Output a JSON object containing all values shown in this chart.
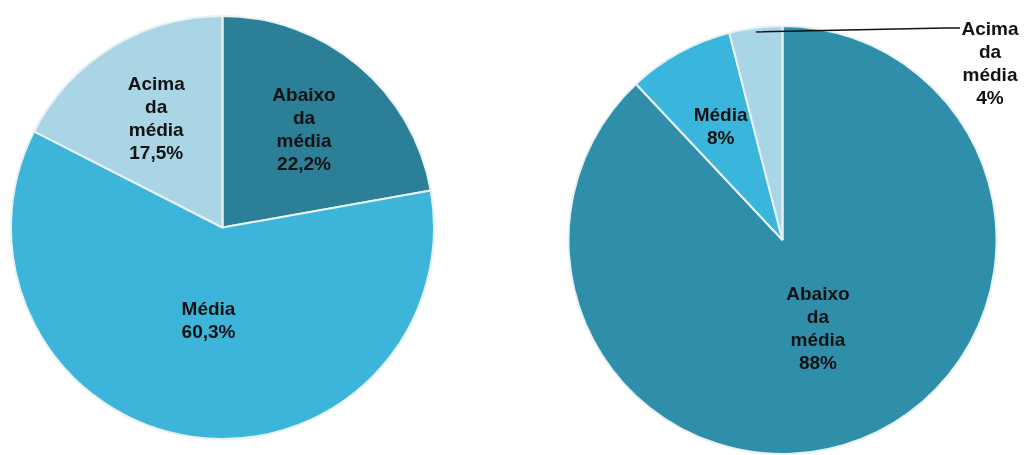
{
  "chart_data": [
    {
      "type": "pie",
      "categories": [
        "Abaixo da média",
        "Média",
        "Acima da média"
      ],
      "values": [
        22.2,
        60.3,
        17.5
      ],
      "value_labels": [
        "22,2%",
        "60,3%",
        "17,5%"
      ],
      "colors": [
        "#2b7f97",
        "#3db5da",
        "#a9d5e5"
      ],
      "legend": false
    },
    {
      "type": "pie",
      "categories": [
        "Abaixo da média",
        "Média",
        "Acima da média"
      ],
      "values": [
        88,
        8,
        4
      ],
      "value_labels": [
        "88%",
        "8%",
        "4%"
      ],
      "colors": [
        "#2f8fab",
        "#3ab6dd",
        "#a8d6e6"
      ],
      "legend": false
    }
  ]
}
